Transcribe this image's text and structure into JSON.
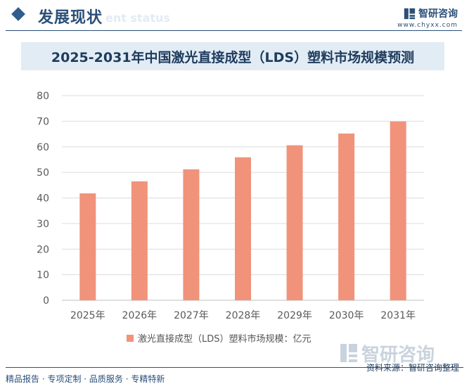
{
  "header": {
    "section_title": "发展现状",
    "section_subtitle": "ent status",
    "brand_name": "智研咨询",
    "brand_url": "www.chyxx.com"
  },
  "watermark": {
    "text": "智研咨询"
  },
  "colors": {
    "bar": "#f0937a",
    "accent": "#2b4f78",
    "title_bg": "#e1ecf5"
  },
  "chart_data": {
    "type": "bar",
    "title": "2025-2031年中国激光直接成型（LDS）塑料市场规模预测",
    "categories": [
      "2025年",
      "2026年",
      "2027年",
      "2028年",
      "2029年",
      "2030年",
      "2031年"
    ],
    "series": [
      {
        "name": "激光直接成型（LDS）塑料市场规模：亿元",
        "values": [
          41.8,
          46.5,
          51.2,
          55.9,
          60.6,
          65.2,
          69.9
        ]
      }
    ],
    "ylim": [
      0,
      80
    ],
    "yticks": [
      0,
      10,
      20,
      30,
      40,
      50,
      60,
      70,
      80
    ],
    "grid": true,
    "legend": "bottom-center"
  },
  "footer": {
    "source": "资料来源：智研咨询整理",
    "tagline": "精品报告 · 专项定制 · 品质服务 · 专精特新"
  }
}
